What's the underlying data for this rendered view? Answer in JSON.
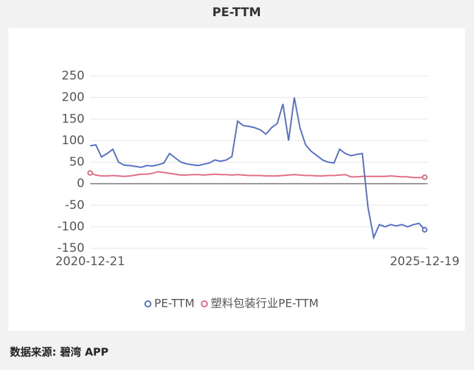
{
  "chart_data": {
    "type": "line",
    "title": "PE-TTM",
    "categories": [
      "2020-12-21",
      null,
      null,
      null,
      null,
      null,
      null,
      null,
      null,
      null,
      null,
      null,
      null,
      null,
      null,
      null,
      null,
      null,
      null,
      null,
      null,
      null,
      null,
      null,
      null,
      null,
      null,
      null,
      null,
      null,
      null,
      null,
      null,
      null,
      null,
      null,
      null,
      null,
      null,
      null,
      null,
      null,
      null,
      null,
      null,
      null,
      null,
      null,
      null,
      null,
      null,
      null,
      null,
      null,
      null,
      null,
      null,
      null,
      null,
      "2025-12-19"
    ],
    "series": [
      {
        "name": "PE-TTM",
        "color": "#5470c6",
        "values": [
          88,
          90,
          62,
          70,
          80,
          50,
          43,
          42,
          40,
          38,
          42,
          41,
          44,
          48,
          70,
          60,
          50,
          46,
          44,
          42,
          45,
          48,
          55,
          52,
          55,
          63,
          145,
          135,
          133,
          130,
          125,
          115,
          130,
          140,
          185,
          100,
          200,
          130,
          90,
          75,
          65,
          55,
          50,
          48,
          80,
          70,
          65,
          68,
          70,
          -55,
          -125,
          -95,
          -100,
          -95,
          -98,
          -95,
          -100,
          -95,
          -92,
          -107
        ]
      },
      {
        "name": "塑料包装行业PE-TTM",
        "color": "#e06c84",
        "values": [
          25,
          20,
          18,
          18,
          19,
          18,
          17,
          18,
          20,
          22,
          22,
          24,
          28,
          26,
          24,
          22,
          20,
          20,
          21,
          21,
          20,
          21,
          22,
          21,
          21,
          20,
          21,
          20,
          19,
          19,
          19,
          18,
          18,
          18,
          19,
          20,
          21,
          20,
          19,
          19,
          18,
          18,
          19,
          19,
          20,
          21,
          16,
          16,
          17,
          17,
          17,
          17,
          17,
          18,
          17,
          16,
          16,
          14,
          14,
          15
        ]
      }
    ],
    "ylim": [
      -150,
      250
    ],
    "yticks": [
      -150,
      -100,
      -50,
      0,
      50,
      100,
      150,
      200,
      250
    ],
    "grid": true,
    "legend": "bottom"
  },
  "source": "数据来源: 碧湾 APP"
}
